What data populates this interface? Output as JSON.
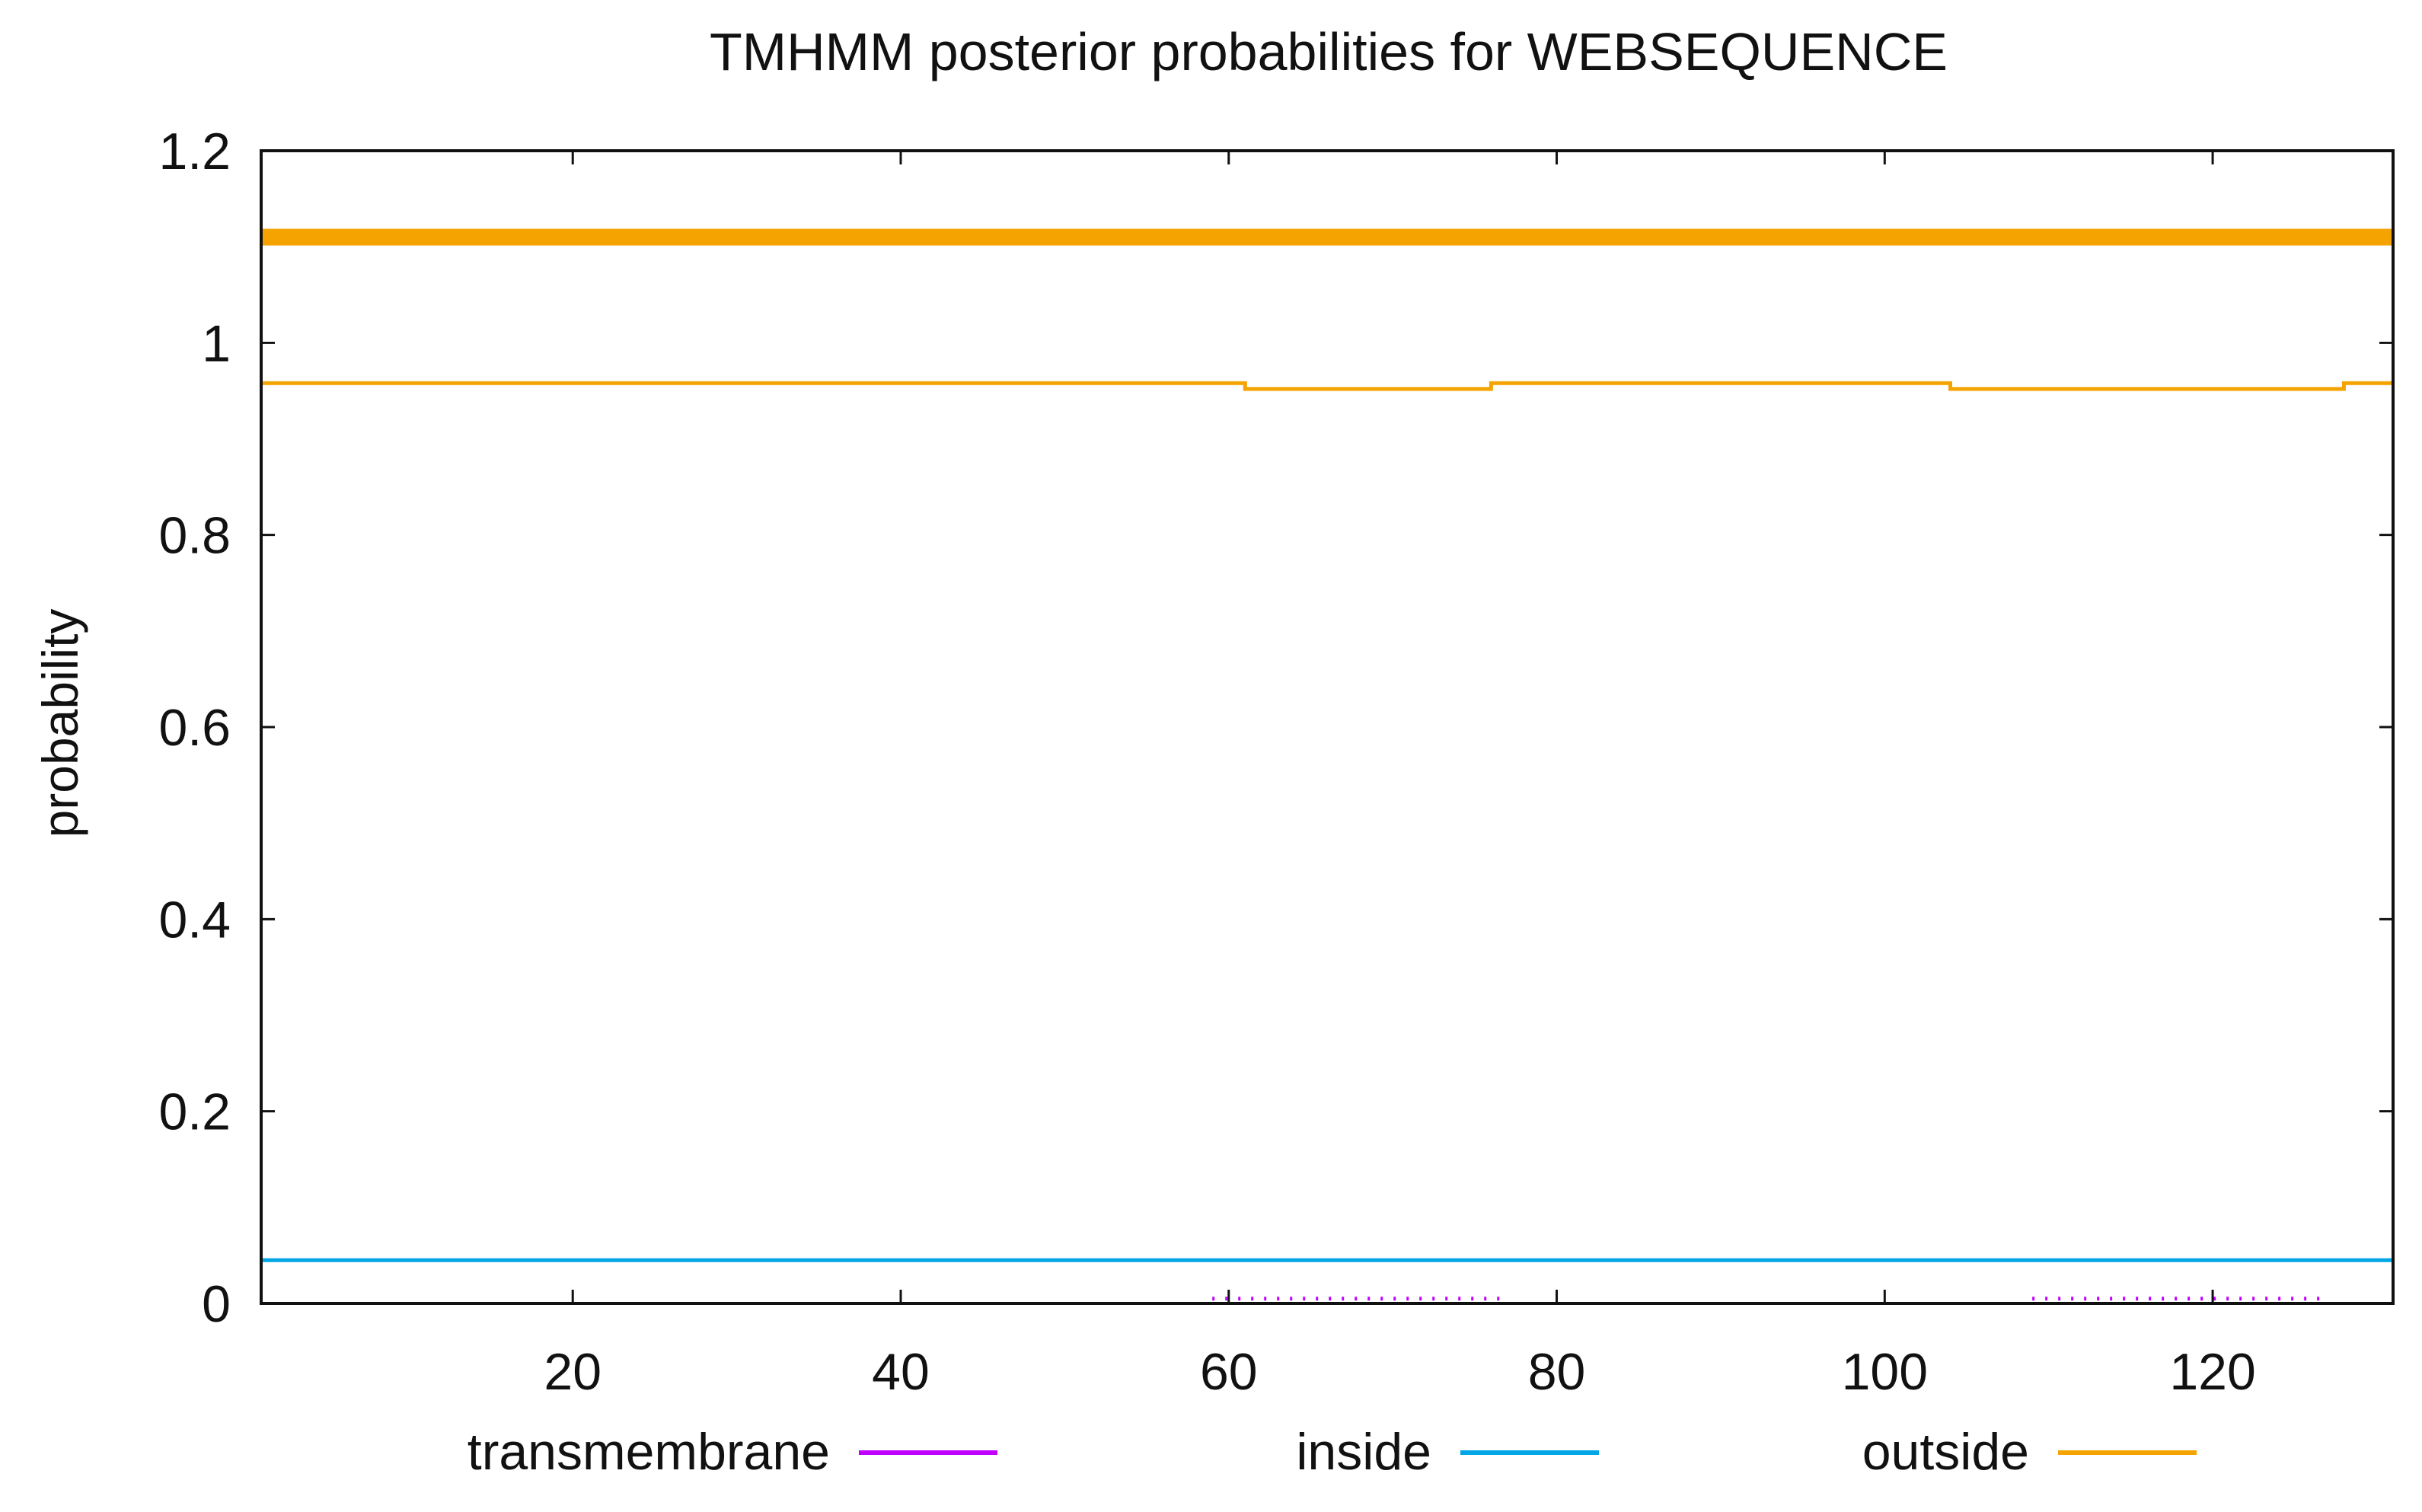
{
  "chart_data": {
    "type": "line",
    "title": "TMHMM posterior probabilities for WEBSEQUENCE",
    "xlabel": "",
    "ylabel": "probability",
    "xlim": [
      1,
      131
    ],
    "ylim": [
      0,
      1.2
    ],
    "x_ticks": [
      20,
      40,
      60,
      80,
      100,
      120
    ],
    "x_tick_labels": [
      "20",
      "40",
      "60",
      "80",
      "100",
      "120"
    ],
    "y_ticks": [
      0,
      0.2,
      0.4,
      0.6,
      0.8,
      1,
      1.2
    ],
    "y_tick_labels": [
      "0",
      "0.2",
      "0.4",
      "0.6",
      "0.8",
      "1",
      "1.2"
    ],
    "grid": false,
    "legend_position": "bottom",
    "series": [
      {
        "name": "transmembrane",
        "color": "#c000ff",
        "style": "impulses",
        "segments": [
          {
            "from": 59,
            "to": 77,
            "value": 0.005
          },
          {
            "from": 109,
            "to": 127,
            "value": 0.005
          }
        ]
      },
      {
        "name": "inside",
        "color": "#00a6e6",
        "style": "line",
        "points": [
          [
            1,
            0.045
          ],
          [
            131,
            0.045
          ]
        ]
      },
      {
        "name": "outside",
        "color": "#f5a300",
        "style": "step",
        "points": [
          [
            1,
            0.958
          ],
          [
            61,
            0.958
          ],
          [
            61,
            0.952
          ],
          [
            76,
            0.952
          ],
          [
            76,
            0.958
          ],
          [
            104,
            0.958
          ],
          [
            104,
            0.952
          ],
          [
            128,
            0.952
          ],
          [
            128,
            0.958
          ],
          [
            131,
            0.958
          ]
        ]
      },
      {
        "name": "",
        "color": "#f5a300",
        "style": "bar-band",
        "points": [
          [
            1,
            1.11
          ],
          [
            131,
            1.11
          ]
        ]
      }
    ]
  }
}
